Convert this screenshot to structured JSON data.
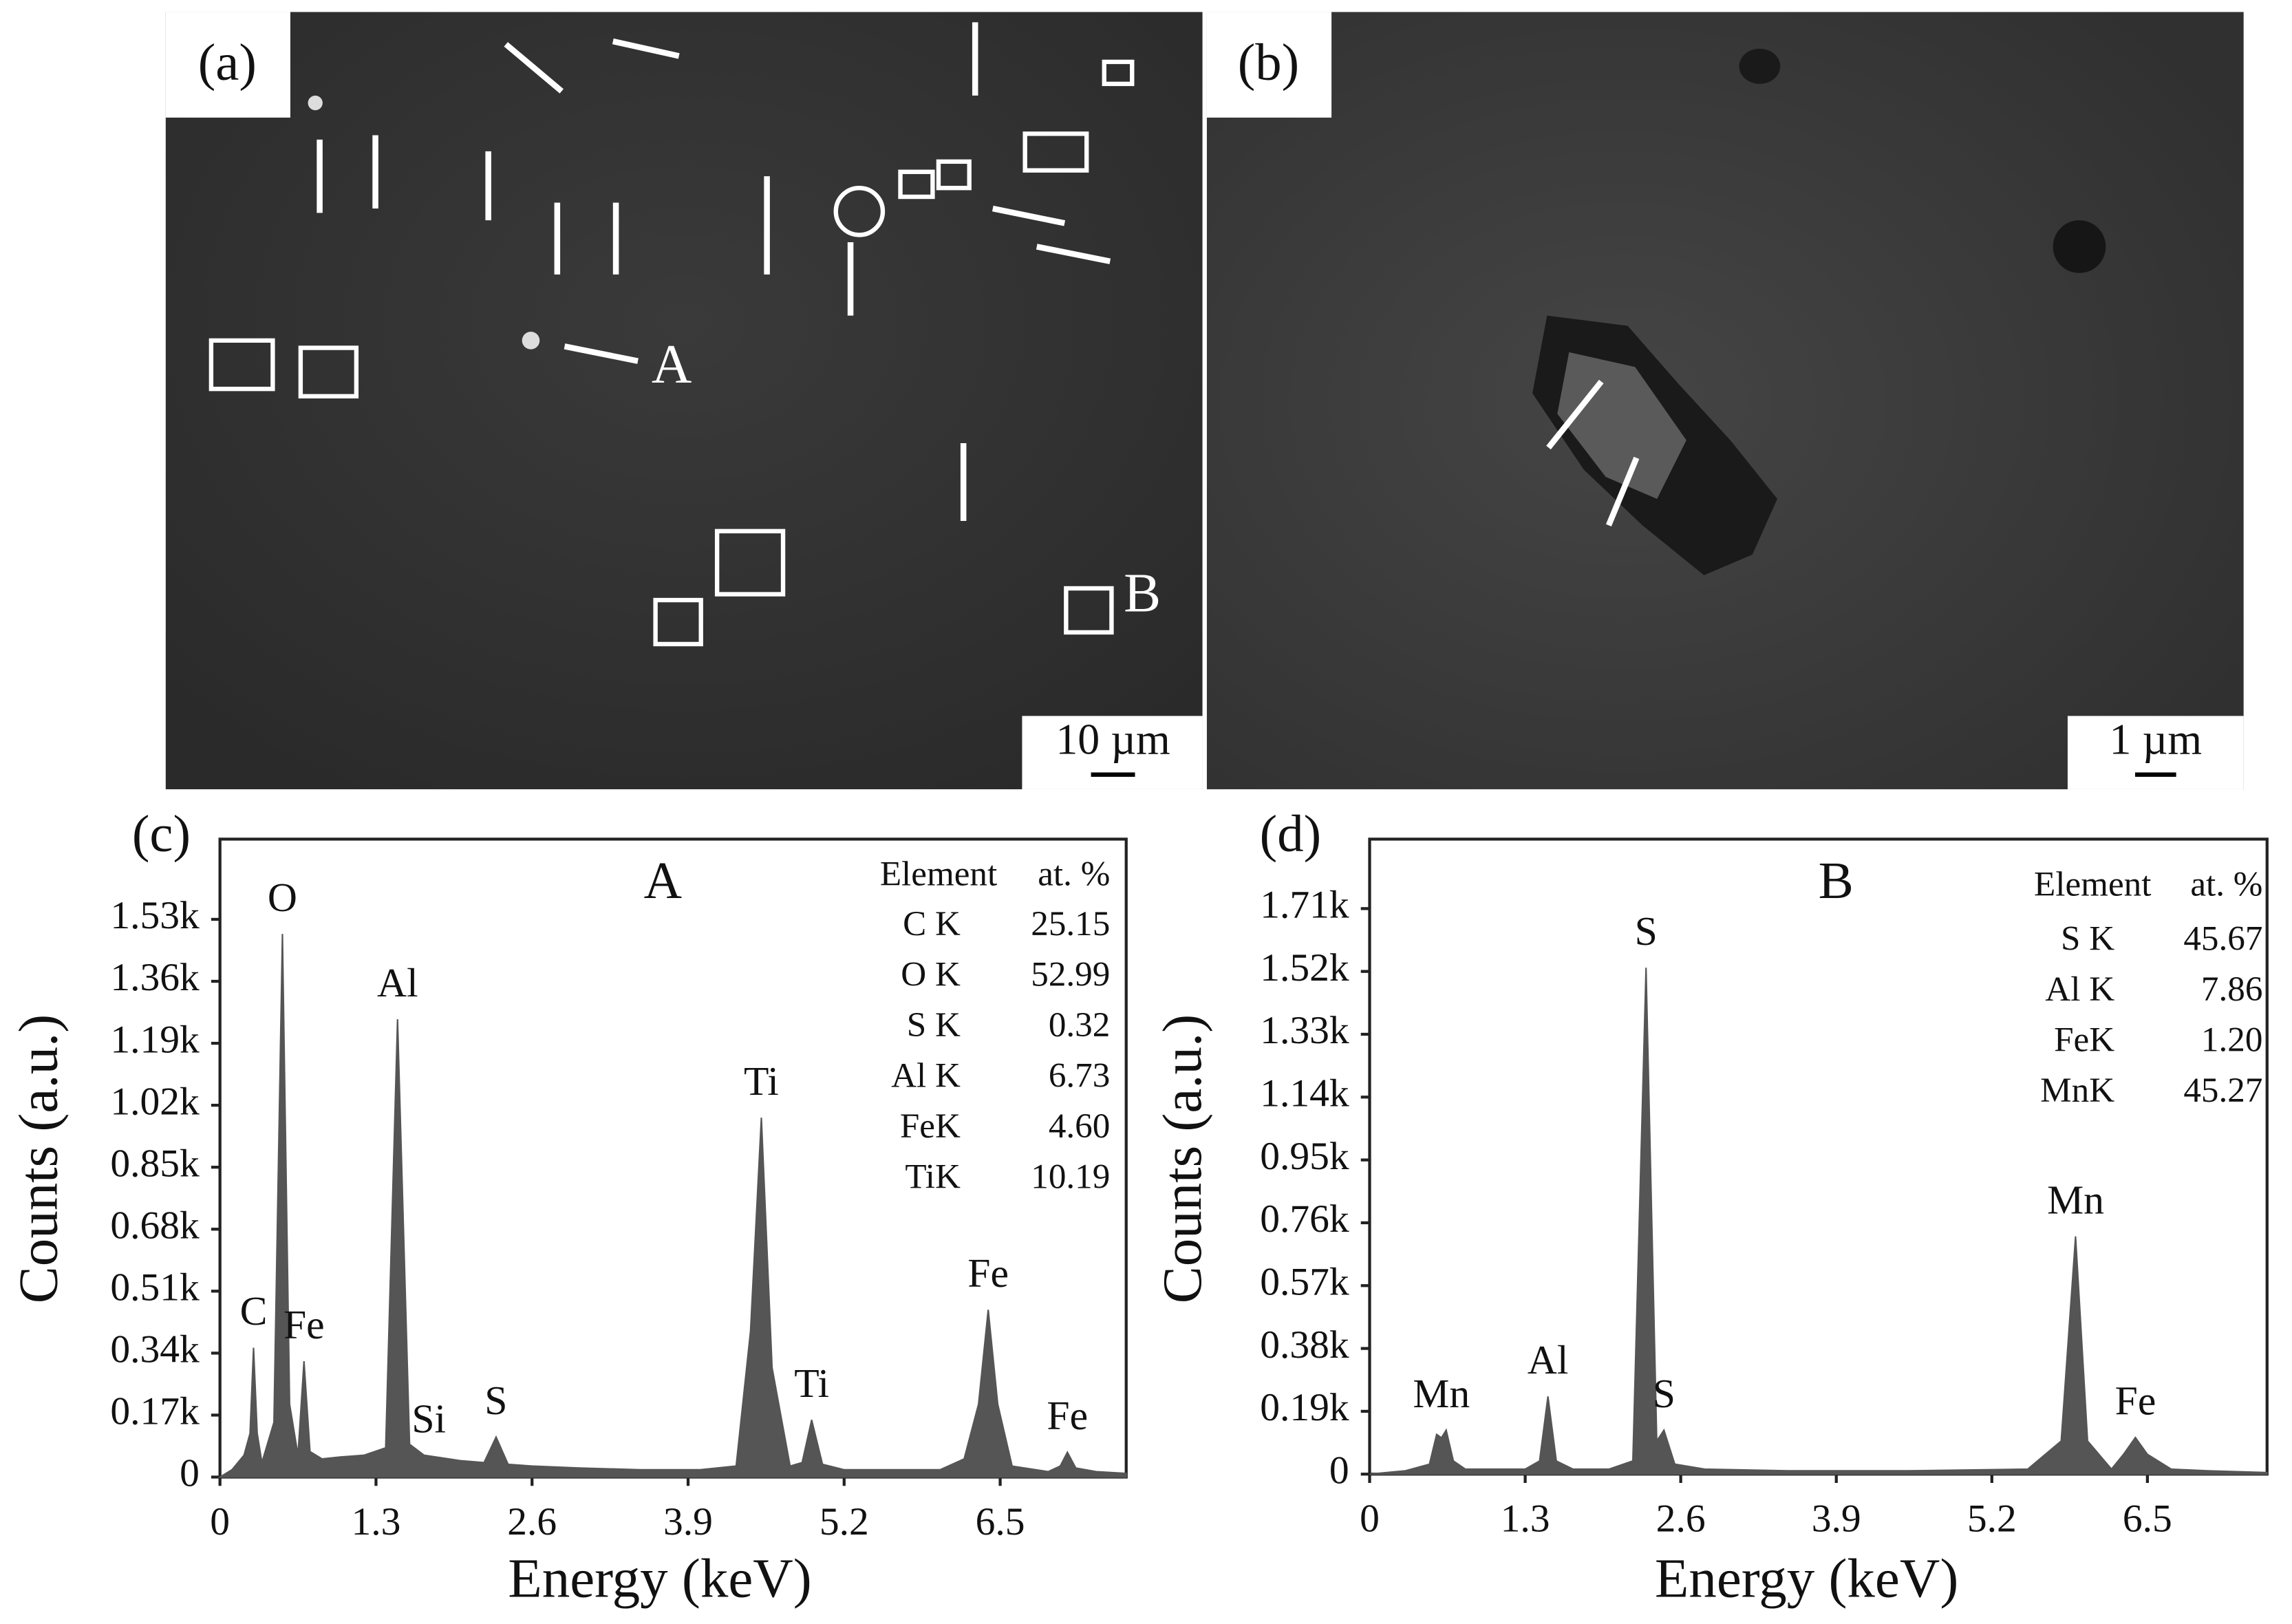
{
  "images": [
    {
      "label": "(a)",
      "markers": [
        "A",
        "B"
      ],
      "scale_bar": "10 µm"
    },
    {
      "label": "(b)",
      "scale_bar": "1 µm"
    }
  ],
  "chart_data": [
    {
      "type": "area",
      "panel": "(c)",
      "title": "A",
      "x_label": "Energy (keV)",
      "y_label": "Counts  (a.u.)",
      "color": "#555555",
      "x": [
        0,
        0.1,
        0.2,
        0.25,
        0.28,
        0.31,
        0.35,
        0.45,
        0.52,
        0.58,
        0.65,
        0.7,
        0.75,
        0.85,
        1.0,
        1.2,
        1.38,
        1.48,
        1.58,
        1.7,
        1.8,
        2.0,
        2.2,
        2.3,
        2.4,
        2.6,
        3.0,
        3.5,
        4.0,
        4.3,
        4.42,
        4.51,
        4.6,
        4.75,
        4.85,
        4.93,
        5.02,
        5.2,
        5.6,
        6.0,
        6.2,
        6.32,
        6.4,
        6.48,
        6.6,
        6.9,
        7.0,
        7.06,
        7.13,
        7.3,
        7.55
      ],
      "values": [
        0,
        20,
        60,
        120,
        355,
        120,
        40,
        150,
        1490,
        200,
        60,
        318,
        70,
        50,
        55,
        60,
        80,
        1256,
        90,
        60,
        55,
        45,
        40,
        110,
        35,
        30,
        25,
        20,
        20,
        30,
        400,
        986,
        300,
        30,
        40,
        157,
        35,
        20,
        20,
        20,
        50,
        200,
        459,
        200,
        30,
        15,
        30,
        68,
        25,
        15,
        10
      ],
      "xlim": [
        0,
        7.55
      ],
      "ylim": [
        0,
        1750
      ],
      "xticks": [
        0,
        1.3,
        2.6,
        3.9,
        5.2,
        6.5
      ],
      "yticks": [
        0,
        {
          "value": 170,
          "label": "0.17k"
        },
        {
          "value": 340,
          "label": "0.34k"
        },
        {
          "value": 510,
          "label": "0.51k"
        },
        {
          "value": 680,
          "label": "0.68k"
        },
        {
          "value": 850,
          "label": "0.85k"
        },
        {
          "value": 1020,
          "label": "1.02k"
        },
        {
          "value": 1190,
          "label": "1.19k"
        },
        {
          "value": 1360,
          "label": "1.36k"
        },
        {
          "value": 1530,
          "label": "1.53k"
        }
      ],
      "annotations": [
        {
          "text": "C",
          "x": 0.28,
          "y": 355
        },
        {
          "text": "O",
          "x": 0.52,
          "y": 1490
        },
        {
          "text": "Fe",
          "x": 0.7,
          "y": 318
        },
        {
          "text": "Al",
          "x": 1.48,
          "y": 1256
        },
        {
          "text": "Si",
          "x": 1.74,
          "y": 60
        },
        {
          "text": "S",
          "x": 2.3,
          "y": 110
        },
        {
          "text": "Ti",
          "x": 4.51,
          "y": 986
        },
        {
          "text": "Ti",
          "x": 4.93,
          "y": 157
        },
        {
          "text": "Fe",
          "x": 6.4,
          "y": 459
        },
        {
          "text": "Fe",
          "x": 7.06,
          "y": 68
        }
      ],
      "table": {
        "header": [
          "Element",
          "at. %"
        ],
        "rows": [
          [
            "C K",
            "25.15"
          ],
          [
            "O K",
            "52.99"
          ],
          [
            "S K",
            "0.32"
          ],
          [
            "Al K",
            "6.73"
          ],
          [
            "FeK",
            "4.60"
          ],
          [
            "TiK",
            "10.19"
          ]
        ]
      }
    },
    {
      "type": "area",
      "panel": "(d)",
      "title": "B",
      "x_label": "Energy (keV)",
      "y_label": "Counts  (a.u.)",
      "color": "#555555",
      "x": [
        0,
        0.3,
        0.5,
        0.56,
        0.6,
        0.64,
        0.7,
        0.8,
        1.0,
        1.3,
        1.42,
        1.49,
        1.56,
        1.7,
        2.0,
        2.2,
        2.31,
        2.4,
        2.46,
        2.55,
        2.8,
        3.5,
        4.5,
        5.5,
        5.78,
        5.9,
        6.0,
        6.2,
        6.3,
        6.4,
        6.5,
        6.7,
        7.0,
        7.5
      ],
      "values": [
        0,
        10,
        30,
        120,
        110,
        133,
        40,
        15,
        15,
        15,
        40,
        235,
        40,
        15,
        15,
        40,
        1531,
        100,
        133,
        30,
        15,
        10,
        10,
        15,
        100,
        719,
        100,
        15,
        60,
        111,
        60,
        15,
        10,
        5
      ],
      "xlim": [
        0,
        7.5
      ],
      "ylim": [
        0,
        1920
      ],
      "xticks": [
        0,
        1.3,
        2.6,
        3.9,
        5.2,
        6.5
      ],
      "yticks": [
        0,
        {
          "value": 190,
          "label": "0.19k"
        },
        {
          "value": 380,
          "label": "0.38k"
        },
        {
          "value": 570,
          "label": "0.57k"
        },
        {
          "value": 760,
          "label": "0.76k"
        },
        {
          "value": 950,
          "label": "0.95k"
        },
        {
          "value": 1140,
          "label": "1.14k"
        },
        {
          "value": 1330,
          "label": "1.33k"
        },
        {
          "value": 1520,
          "label": "1.52k"
        },
        {
          "value": 1710,
          "label": "1.71k"
        }
      ],
      "annotations": [
        {
          "text": "Mn",
          "x": 0.6,
          "y": 133
        },
        {
          "text": "Al",
          "x": 1.49,
          "y": 235
        },
        {
          "text": "S",
          "x": 2.31,
          "y": 1531
        },
        {
          "text": "S",
          "x": 2.46,
          "y": 133
        },
        {
          "text": "Mn",
          "x": 5.9,
          "y": 719
        },
        {
          "text": "Fe",
          "x": 6.4,
          "y": 111
        }
      ],
      "table": {
        "header": [
          "Element",
          "at. %"
        ],
        "rows": [
          [
            "S K",
            "45.67"
          ],
          [
            "Al K",
            "7.86"
          ],
          [
            "FeK",
            "1.20"
          ],
          [
            "MnK",
            "45.27"
          ]
        ]
      }
    }
  ]
}
